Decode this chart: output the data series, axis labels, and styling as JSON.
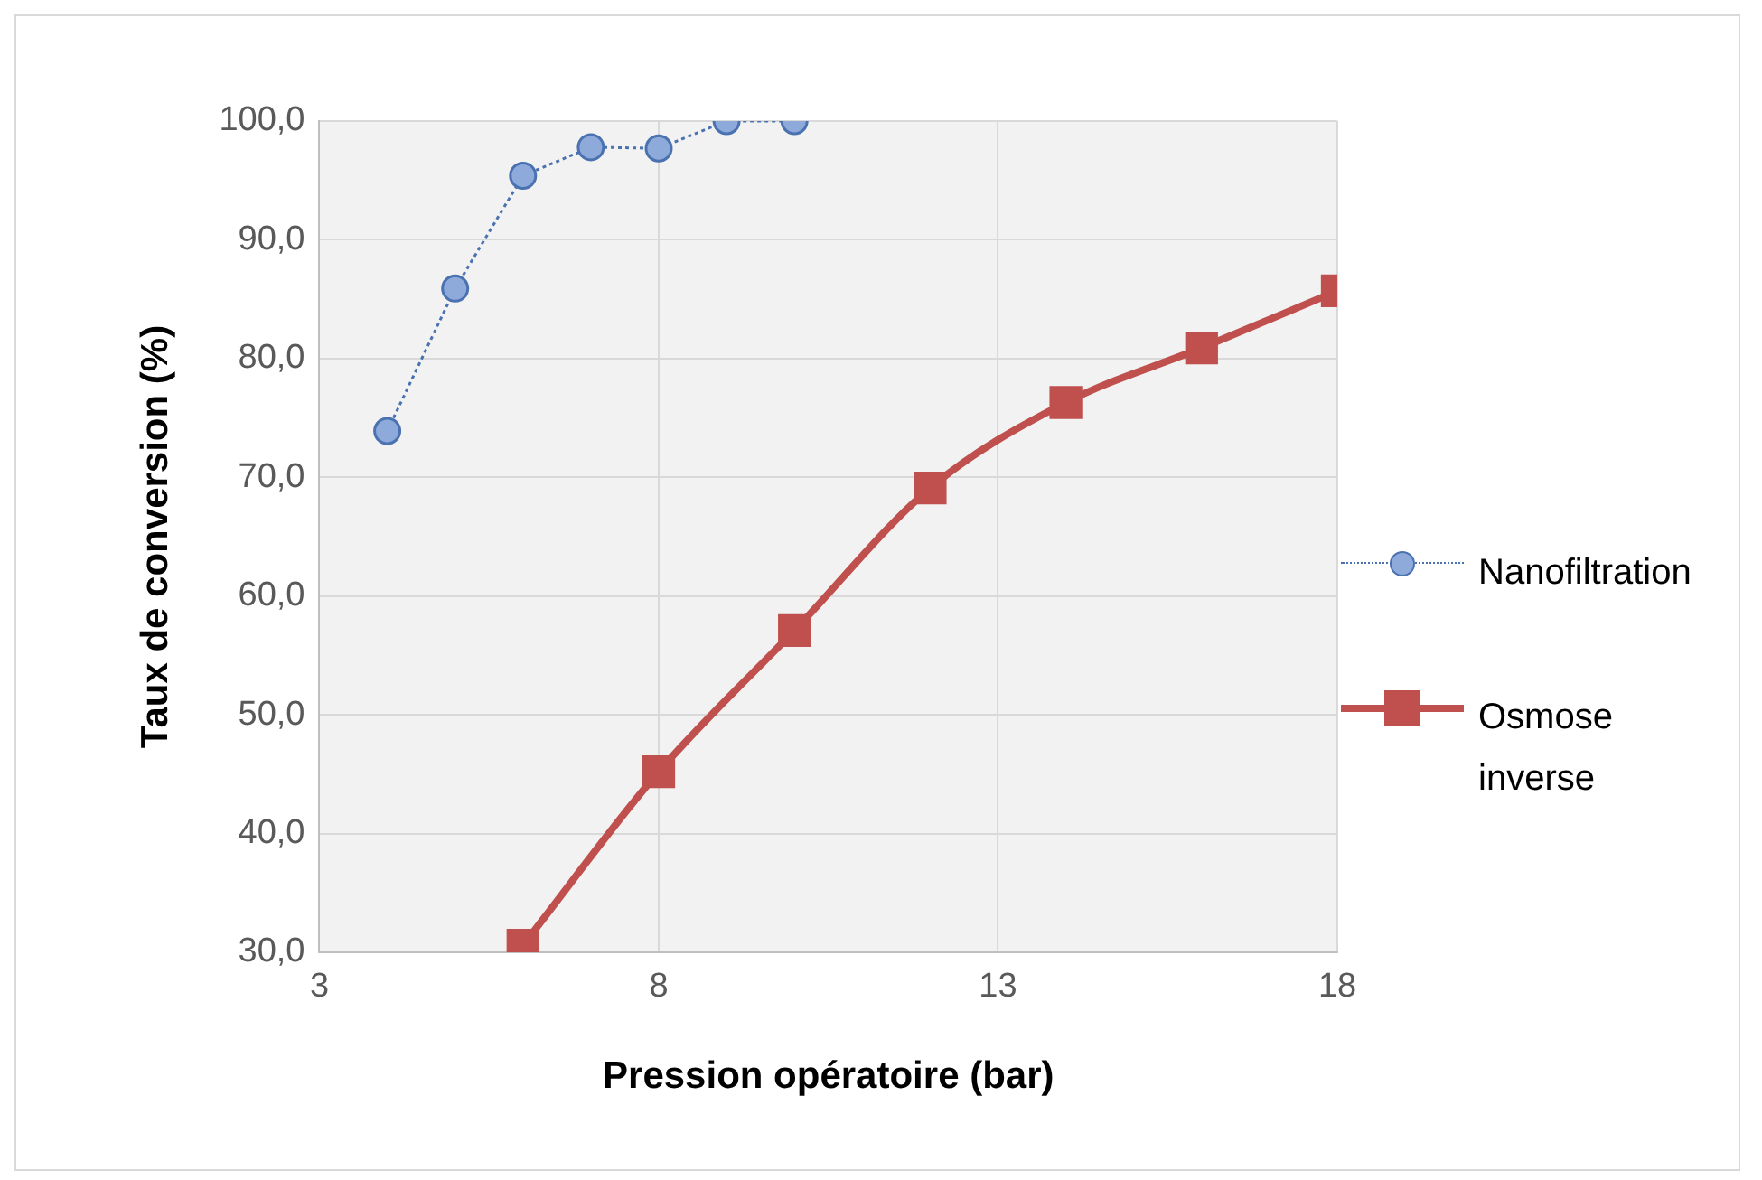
{
  "chart_data": {
    "type": "line",
    "xlabel": "Pression opératoire (bar)",
    "ylabel": "Taux de conversion (%)",
    "xlim": [
      3,
      18
    ],
    "xticks": [
      3,
      8,
      13,
      18
    ],
    "ylim": [
      30,
      100
    ],
    "yticks": [
      {
        "value": 30,
        "label": "30,0"
      },
      {
        "value": 40,
        "label": "40,0"
      },
      {
        "value": 50,
        "label": "50,0"
      },
      {
        "value": 60,
        "label": "60,0"
      },
      {
        "value": 70,
        "label": "70,0"
      },
      {
        "value": 80,
        "label": "80,0"
      },
      {
        "value": 90,
        "label": "90,0"
      },
      {
        "value": 100,
        "label": "100,0"
      }
    ],
    "grid": true,
    "legend": "right",
    "series": [
      {
        "name": "Nanofiltration",
        "color": "#4a72b0",
        "x": [
          4,
          5,
          6,
          7,
          8,
          9,
          10
        ],
        "values": [
          73.9,
          85.9,
          95.4,
          97.8,
          97.7,
          100,
          100
        ],
        "marker": "circle",
        "line_style": "dotted"
      },
      {
        "name": "Osmose inverse",
        "color": "#c0504d",
        "x": [
          6,
          8,
          10,
          12,
          14,
          16,
          18
        ],
        "values": [
          30.6,
          45.2,
          57.1,
          69.1,
          76.3,
          80.9,
          85.7
        ],
        "marker": "square",
        "line_style": "solid"
      }
    ]
  }
}
